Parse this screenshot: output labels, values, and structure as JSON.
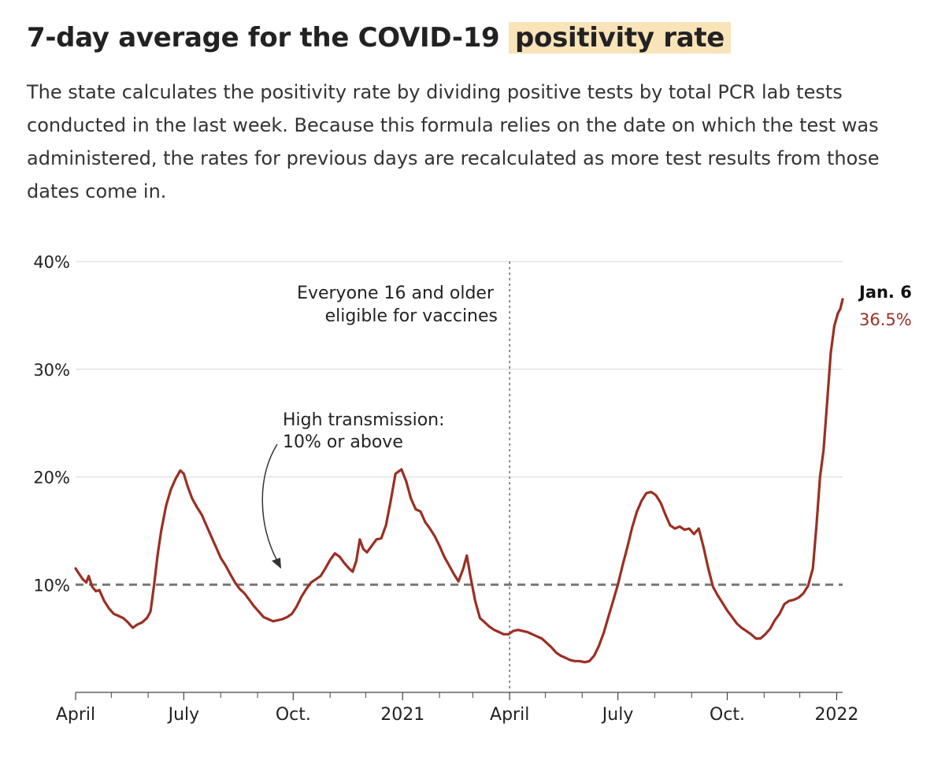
{
  "header": {
    "title_pre": "7-day average for the COVID-19",
    "title_highlight": "positivity rate",
    "subtitle": "The state calculates the positivity rate by dividing positive tests by total PCR lab tests conducted in the last week. Because this formula relies on the date on which the test was administered, the rates for previous days are recalculated as more test results from those dates come in."
  },
  "colors": {
    "line": "#9b2f23",
    "threshold": "#777777",
    "highlight": "#f9e3b9",
    "grid": "#dddddd"
  },
  "chart_data": {
    "type": "line",
    "title": "7-day average for the COVID-19 positivity rate",
    "xlabel": "",
    "ylabel": "",
    "xlim": [
      "2020-04-01",
      "2022-01-06"
    ],
    "ylim": [
      0,
      40
    ],
    "grid": true,
    "yticks": [
      {
        "value": 10,
        "label": "10%"
      },
      {
        "value": 20,
        "label": "20%"
      },
      {
        "value": 30,
        "label": "30%"
      },
      {
        "value": 40,
        "label": "40%"
      }
    ],
    "xticks": [
      {
        "date": "2020-04-01",
        "label": "April"
      },
      {
        "date": "2020-07-01",
        "label": "July"
      },
      {
        "date": "2020-10-01",
        "label": "Oct."
      },
      {
        "date": "2021-01-01",
        "label": "2021"
      },
      {
        "date": "2021-04-01",
        "label": "April"
      },
      {
        "date": "2021-07-01",
        "label": "July"
      },
      {
        "date": "2021-10-01",
        "label": "Oct."
      },
      {
        "date": "2022-01-01",
        "label": "2022"
      }
    ],
    "minor_tick_dates": [
      "2020-05-01",
      "2020-06-01",
      "2020-08-01",
      "2020-09-01",
      "2020-11-01",
      "2020-12-01",
      "2021-02-01",
      "2021-03-01",
      "2021-05-01",
      "2021-06-01",
      "2021-08-01",
      "2021-09-01",
      "2021-11-01",
      "2021-12-01"
    ],
    "series": [
      {
        "values": [
          [
            "2020-04-01",
            11.5
          ],
          [
            "2020-04-04",
            11.0
          ],
          [
            "2020-04-07",
            10.5
          ],
          [
            "2020-04-10",
            10.2
          ],
          [
            "2020-04-12",
            10.8
          ],
          [
            "2020-04-15",
            9.8
          ],
          [
            "2020-04-18",
            9.4
          ],
          [
            "2020-04-21",
            9.5
          ],
          [
            "2020-04-25",
            8.5
          ],
          [
            "2020-04-29",
            7.8
          ],
          [
            "2020-05-03",
            7.3
          ],
          [
            "2020-05-07",
            7.1
          ],
          [
            "2020-05-11",
            6.9
          ],
          [
            "2020-05-15",
            6.5
          ],
          [
            "2020-05-19",
            6.0
          ],
          [
            "2020-05-23",
            6.3
          ],
          [
            "2020-05-27",
            6.5
          ],
          [
            "2020-05-31",
            6.9
          ],
          [
            "2020-06-03",
            7.5
          ],
          [
            "2020-06-06",
            10.0
          ],
          [
            "2020-06-09",
            12.8
          ],
          [
            "2020-06-12",
            15.0
          ],
          [
            "2020-06-16",
            17.3
          ],
          [
            "2020-06-20",
            18.8
          ],
          [
            "2020-06-24",
            19.8
          ],
          [
            "2020-06-28",
            20.6
          ],
          [
            "2020-07-01",
            20.3
          ],
          [
            "2020-07-04",
            19.2
          ],
          [
            "2020-07-08",
            18.0
          ],
          [
            "2020-07-12",
            17.2
          ],
          [
            "2020-07-16",
            16.5
          ],
          [
            "2020-07-20",
            15.5
          ],
          [
            "2020-07-24",
            14.5
          ],
          [
            "2020-07-28",
            13.5
          ],
          [
            "2020-08-01",
            12.5
          ],
          [
            "2020-08-05",
            11.8
          ],
          [
            "2020-08-09",
            11.0
          ],
          [
            "2020-08-13",
            10.2
          ],
          [
            "2020-08-17",
            9.6
          ],
          [
            "2020-08-21",
            9.2
          ],
          [
            "2020-08-25",
            8.6
          ],
          [
            "2020-08-29",
            8.0
          ],
          [
            "2020-09-02",
            7.5
          ],
          [
            "2020-09-06",
            7.0
          ],
          [
            "2020-09-10",
            6.8
          ],
          [
            "2020-09-14",
            6.6
          ],
          [
            "2020-09-18",
            6.7
          ],
          [
            "2020-09-22",
            6.8
          ],
          [
            "2020-09-26",
            7.0
          ],
          [
            "2020-09-30",
            7.3
          ],
          [
            "2020-10-04",
            8.0
          ],
          [
            "2020-10-08",
            8.9
          ],
          [
            "2020-10-12",
            9.6
          ],
          [
            "2020-10-16",
            10.2
          ],
          [
            "2020-10-20",
            10.5
          ],
          [
            "2020-10-24",
            10.8
          ],
          [
            "2020-10-28",
            11.5
          ],
          [
            "2020-11-01",
            12.3
          ],
          [
            "2020-11-05",
            12.9
          ],
          [
            "2020-11-09",
            12.6
          ],
          [
            "2020-11-13",
            12.0
          ],
          [
            "2020-11-17",
            11.5
          ],
          [
            "2020-11-20",
            11.2
          ],
          [
            "2020-11-23",
            12.2
          ],
          [
            "2020-11-26",
            14.2
          ],
          [
            "2020-11-29",
            13.3
          ],
          [
            "2020-12-02",
            13.0
          ],
          [
            "2020-12-06",
            13.6
          ],
          [
            "2020-12-10",
            14.2
          ],
          [
            "2020-12-14",
            14.3
          ],
          [
            "2020-12-18",
            15.5
          ],
          [
            "2020-12-22",
            17.8
          ],
          [
            "2020-12-26",
            20.3
          ],
          [
            "2020-12-31",
            20.7
          ],
          [
            "2021-01-04",
            19.6
          ],
          [
            "2021-01-08",
            18.0
          ],
          [
            "2021-01-12",
            17.0
          ],
          [
            "2021-01-16",
            16.8
          ],
          [
            "2021-01-20",
            15.8
          ],
          [
            "2021-01-24",
            15.2
          ],
          [
            "2021-01-28",
            14.5
          ],
          [
            "2021-02-01",
            13.6
          ],
          [
            "2021-02-05",
            12.6
          ],
          [
            "2021-02-09",
            11.8
          ],
          [
            "2021-02-13",
            11.0
          ],
          [
            "2021-02-17",
            10.3
          ],
          [
            "2021-02-21",
            11.5
          ],
          [
            "2021-02-24",
            12.7
          ],
          [
            "2021-02-27",
            10.8
          ],
          [
            "2021-03-03",
            8.5
          ],
          [
            "2021-03-07",
            6.9
          ],
          [
            "2021-03-11",
            6.5
          ],
          [
            "2021-03-15",
            6.1
          ],
          [
            "2021-03-19",
            5.8
          ],
          [
            "2021-03-23",
            5.6
          ],
          [
            "2021-03-27",
            5.4
          ],
          [
            "2021-03-31",
            5.4
          ],
          [
            "2021-04-04",
            5.7
          ],
          [
            "2021-04-08",
            5.8
          ],
          [
            "2021-04-12",
            5.7
          ],
          [
            "2021-04-16",
            5.6
          ],
          [
            "2021-04-20",
            5.4
          ],
          [
            "2021-04-24",
            5.2
          ],
          [
            "2021-04-28",
            5.0
          ],
          [
            "2021-05-02",
            4.6
          ],
          [
            "2021-05-06",
            4.2
          ],
          [
            "2021-05-10",
            3.7
          ],
          [
            "2021-05-14",
            3.4
          ],
          [
            "2021-05-18",
            3.2
          ],
          [
            "2021-05-22",
            3.0
          ],
          [
            "2021-05-26",
            2.9
          ],
          [
            "2021-05-30",
            2.9
          ],
          [
            "2021-06-03",
            2.8
          ],
          [
            "2021-06-07",
            2.9
          ],
          [
            "2021-06-11",
            3.4
          ],
          [
            "2021-06-15",
            4.3
          ],
          [
            "2021-06-19",
            5.5
          ],
          [
            "2021-06-23",
            7.0
          ],
          [
            "2021-06-27",
            8.5
          ],
          [
            "2021-07-01",
            10.0
          ],
          [
            "2021-07-05",
            11.8
          ],
          [
            "2021-07-09",
            13.5
          ],
          [
            "2021-07-13",
            15.3
          ],
          [
            "2021-07-17",
            16.8
          ],
          [
            "2021-07-21",
            17.8
          ],
          [
            "2021-07-25",
            18.5
          ],
          [
            "2021-07-29",
            18.6
          ],
          [
            "2021-08-02",
            18.3
          ],
          [
            "2021-08-06",
            17.6
          ],
          [
            "2021-08-10",
            16.5
          ],
          [
            "2021-08-14",
            15.5
          ],
          [
            "2021-08-18",
            15.2
          ],
          [
            "2021-08-22",
            15.4
          ],
          [
            "2021-08-26",
            15.1
          ],
          [
            "2021-08-30",
            15.2
          ],
          [
            "2021-09-03",
            14.7
          ],
          [
            "2021-09-07",
            15.2
          ],
          [
            "2021-09-11",
            13.5
          ],
          [
            "2021-09-15",
            11.5
          ],
          [
            "2021-09-19",
            9.8
          ],
          [
            "2021-09-23",
            9.0
          ],
          [
            "2021-09-27",
            8.3
          ],
          [
            "2021-10-01",
            7.6
          ],
          [
            "2021-10-05",
            7.0
          ],
          [
            "2021-10-09",
            6.4
          ],
          [
            "2021-10-13",
            6.0
          ],
          [
            "2021-10-17",
            5.7
          ],
          [
            "2021-10-21",
            5.4
          ],
          [
            "2021-10-25",
            5.0
          ],
          [
            "2021-10-29",
            5.0
          ],
          [
            "2021-11-02",
            5.4
          ],
          [
            "2021-11-06",
            5.9
          ],
          [
            "2021-11-10",
            6.7
          ],
          [
            "2021-11-14",
            7.3
          ],
          [
            "2021-11-18",
            8.2
          ],
          [
            "2021-11-22",
            8.5
          ],
          [
            "2021-11-26",
            8.6
          ],
          [
            "2021-11-30",
            8.8
          ],
          [
            "2021-12-04",
            9.2
          ],
          [
            "2021-12-08",
            9.9
          ],
          [
            "2021-12-12",
            11.5
          ],
          [
            "2021-12-15",
            15.5
          ],
          [
            "2021-12-18",
            20.0
          ],
          [
            "2021-12-21",
            22.5
          ],
          [
            "2021-12-24",
            27.0
          ],
          [
            "2021-12-27",
            31.5
          ],
          [
            "2021-12-30",
            34.0
          ],
          [
            "2022-01-02",
            35.2
          ],
          [
            "2022-01-04",
            35.6
          ],
          [
            "2022-01-06",
            36.5
          ]
        ]
      }
    ],
    "reference_line": {
      "y": 10,
      "style": "dashed"
    },
    "annotations": {
      "vaccine": {
        "date": "2021-04-01",
        "line1": "Everyone 16 and older",
        "line2": "eligible for vaccines"
      },
      "threshold": {
        "line1": "High transmission:",
        "line2": "10% or above"
      },
      "endpoint": {
        "date_label": "Jan. 6",
        "value_label": "36.5%"
      }
    }
  }
}
